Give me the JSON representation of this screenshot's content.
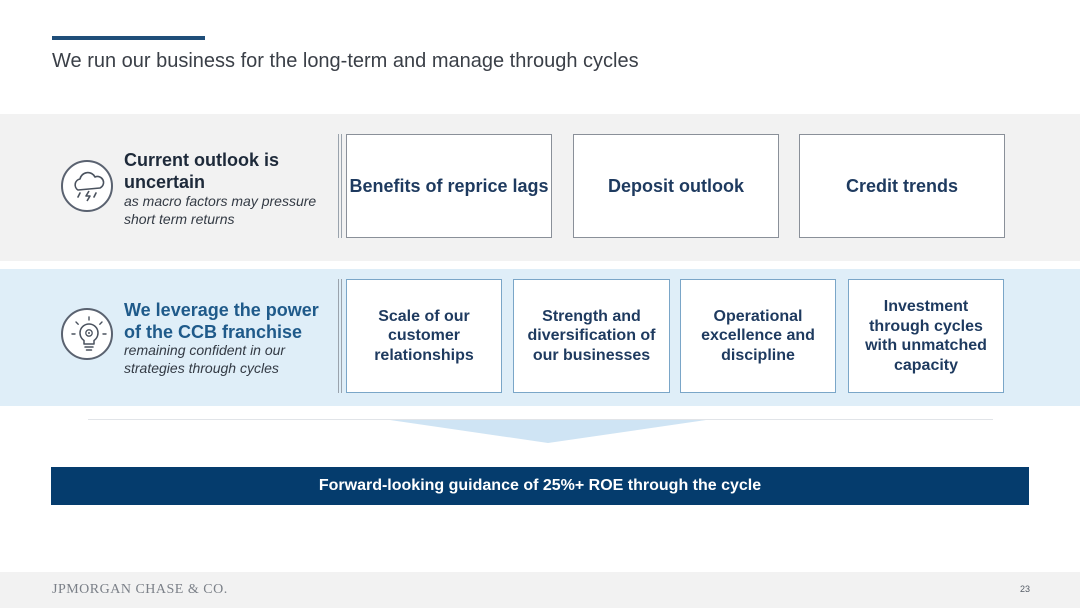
{
  "slide": {
    "title": "We run our business for the long-term and manage through cycles"
  },
  "outlook": {
    "icon": "storm-cloud-icon",
    "heading": "Current outlook is uncertain",
    "subtext": "as macro factors may pressure short term returns",
    "cards": [
      "Benefits of reprice lags",
      "Deposit outlook",
      "Credit trends"
    ]
  },
  "leverage": {
    "icon": "lightbulb-gear-icon",
    "heading": "We leverage the power of the CCB franchise",
    "subtext": "remaining confident in our strategies through cycles",
    "cards": [
      "Scale of our customer relationships",
      "Strength and diversification of our businesses",
      "Operational excellence and discipline",
      "Investment through cycles with unmatched capacity"
    ]
  },
  "guidance": {
    "text": "Forward-looking guidance of 25%+ ROE through the cycle"
  },
  "footer": {
    "logo": "JPMORGAN CHASE & CO.",
    "page_number": "23"
  },
  "colors": {
    "navy": "#053c6d",
    "heading_dark": "#1e2a3a",
    "heading_blue": "#1f5a8a",
    "band_grey": "#f2f2f2",
    "band_blue": "#dfeef8"
  }
}
